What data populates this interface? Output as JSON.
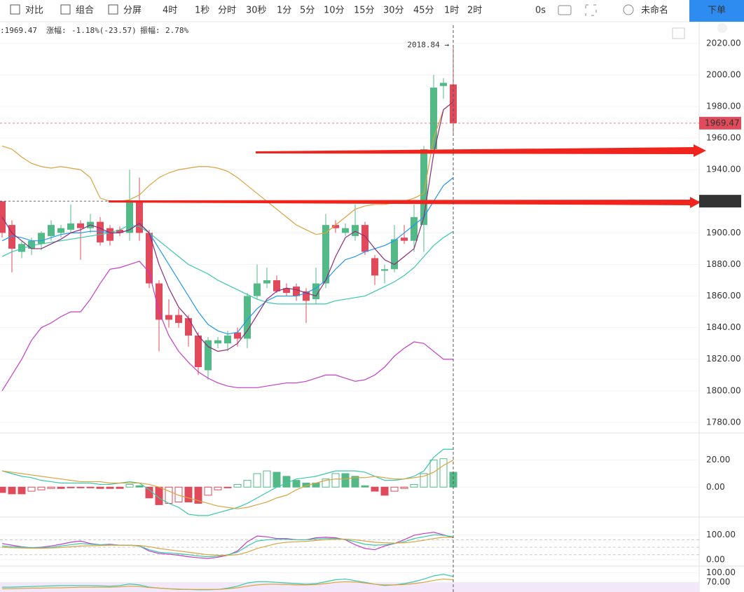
{
  "toolbar": {
    "tools": [
      "对比",
      "组合",
      "分屏"
    ],
    "intervals": [
      "4时",
      "1秒",
      "分时",
      "30秒",
      "1分",
      "5分",
      "10分",
      "15分",
      "30分",
      "45分",
      "1时",
      "2时"
    ],
    "timer": "0s",
    "layout_name": "未命名",
    "order_button": "下单"
  },
  "info": {
    "close_text": ":1969.47",
    "change_label": "涨幅:",
    "change_value": "-1.18%(-23.57)",
    "amplitude_label": "振幅:",
    "amplitude_value": "2.78%"
  },
  "chart_data": [
    {
      "type": "candlestick",
      "up_color": "#53b987",
      "down_color": "#e04a5a",
      "open": [
        1920,
        1905,
        1888,
        1890,
        1893,
        1898,
        1900,
        1902,
        1906,
        1903,
        1907,
        1903,
        1902,
        1900,
        1920,
        1900,
        1868,
        1848,
        1848,
        1846,
        1835,
        1813,
        1830,
        1830,
        1837,
        1833,
        1860,
        1868,
        1870,
        1865,
        1866,
        1863,
        1858,
        1868,
        1905,
        1900,
        1898,
        1905,
        1884,
        1876,
        1877,
        1897,
        1895,
        1905,
        1953,
        1993,
        1994
      ],
      "high": [
        1920,
        1908,
        1895,
        1897,
        1901,
        1908,
        1905,
        1918,
        1908,
        1912,
        1910,
        1905,
        1904,
        1940,
        1935,
        1902,
        1870,
        1858,
        1852,
        1848,
        1837,
        1834,
        1834,
        1838,
        1840,
        1862,
        1880,
        1878,
        1873,
        1868,
        1868,
        1865,
        1878,
        1912,
        1908,
        1906,
        1918,
        1907,
        1886,
        1880,
        1905,
        1905,
        1918,
        1955,
        2000,
        1998,
        2018.84
      ],
      "low": [
        1897,
        1875,
        1884,
        1886,
        1889,
        1895,
        1897,
        1900,
        1883,
        1900,
        1892,
        1892,
        1898,
        1895,
        1895,
        1865,
        1825,
        1840,
        1840,
        1828,
        1810,
        1807,
        1827,
        1825,
        1828,
        1827,
        1858,
        1865,
        1862,
        1860,
        1857,
        1843,
        1855,
        1865,
        1900,
        1898,
        1895,
        1886,
        1867,
        1868,
        1875,
        1893,
        1888,
        1888,
        1950,
        1985,
        1963
      ],
      "close": [
        1900,
        1890,
        1893,
        1895,
        1900,
        1905,
        1903,
        1906,
        1903,
        1907,
        1894,
        1895,
        1900,
        1920,
        1900,
        1868,
        1845,
        1845,
        1843,
        1835,
        1815,
        1832,
        1832,
        1835,
        1833,
        1860,
        1868,
        1870,
        1863,
        1862,
        1860,
        1857,
        1868,
        1905,
        1903,
        1903,
        1905,
        1888,
        1873,
        1877,
        1896,
        1895,
        1910,
        1953,
        1992,
        1995,
        1969.47
      ],
      "series": [
        {
          "color": "#d9a441",
          "values": [
            1955,
            1953,
            1948,
            1944,
            1942,
            1941,
            1942,
            1941,
            1940,
            1935,
            1922,
            1920,
            1920,
            1921,
            1924,
            1930,
            1935,
            1938,
            1940,
            1941,
            1942,
            1942,
            1941,
            1939,
            1935,
            1930,
            1925,
            1920,
            1915,
            1910,
            1905,
            1902,
            1899,
            1900,
            1905,
            1910,
            1915,
            1917,
            1918,
            1918,
            1919,
            1920,
            1922,
            1925,
            1960,
            1978,
            1983
          ]
        },
        {
          "color": "#c43dc4",
          "values": [
            1800,
            1810,
            1820,
            1832,
            1840,
            1843,
            1847,
            1850,
            1850,
            1858,
            1868,
            1877,
            1878,
            1880,
            1882,
            1875,
            1850,
            1835,
            1825,
            1818,
            1812,
            1808,
            1805,
            1803,
            1802,
            1802,
            1802,
            1803,
            1804,
            1805,
            1805,
            1806,
            1808,
            1810,
            1810,
            1808,
            1806,
            1807,
            1810,
            1815,
            1822,
            1827,
            1831,
            1830,
            1825,
            1820,
            1820
          ]
        },
        {
          "color": "#2196f3",
          "values": [
            1895,
            1898,
            1897,
            1895,
            1895,
            1897,
            1899,
            1900,
            1900,
            1901,
            1901,
            1900,
            1900,
            1902,
            1906,
            1900,
            1890,
            1880,
            1870,
            1860,
            1850,
            1842,
            1838,
            1836,
            1837,
            1845,
            1852,
            1857,
            1860,
            1860,
            1860,
            1862,
            1865,
            1870,
            1877,
            1883,
            1885,
            1888,
            1890,
            1892,
            1895,
            1900,
            1905,
            1910,
            1920,
            1930,
            1935
          ]
        },
        {
          "color": "#38c9a8",
          "values": [
            1885,
            1888,
            1890,
            1892,
            1893,
            1894,
            1895,
            1896,
            1897,
            1898,
            1899,
            1900,
            1902,
            1905,
            1904,
            1900,
            1895,
            1890,
            1885,
            1880,
            1877,
            1874,
            1870,
            1867,
            1864,
            1861,
            1858,
            1856,
            1855,
            1855,
            1855,
            1855,
            1855,
            1855,
            1857,
            1858,
            1859,
            1860,
            1863,
            1866,
            1869,
            1873,
            1878,
            1885,
            1892,
            1897,
            1901
          ]
        },
        {
          "color": "#8e2a7a",
          "values": [
            1910,
            1900,
            1895,
            1890,
            1890,
            1893,
            1896,
            1900,
            1902,
            1905,
            1903,
            1900,
            1900,
            1902,
            1906,
            1900,
            1880,
            1865,
            1853,
            1846,
            1835,
            1828,
            1825,
            1826,
            1830,
            1838,
            1848,
            1858,
            1863,
            1865,
            1864,
            1862,
            1860,
            1870,
            1885,
            1897,
            1901,
            1898,
            1890,
            1883,
            1880,
            1885,
            1890,
            1910,
            1950,
            1978,
            1983
          ]
        }
      ],
      "ylim": [
        1773.3,
        2031.5
      ],
      "yticks": [
        {
          "value": 2020,
          "label": "2020.00"
        },
        {
          "value": 2000,
          "label": "2000.00"
        },
        {
          "value": 1980,
          "label": "1980.00"
        },
        {
          "value": 1960,
          "label": "1960.00"
        },
        {
          "value": 1940,
          "label": "1940.00"
        },
        {
          "value": 1920,
          "label": "1920.00"
        },
        {
          "value": 1900,
          "label": "1900.00"
        },
        {
          "value": 1880,
          "label": "1880.00"
        },
        {
          "value": 1860,
          "label": "1860.00"
        },
        {
          "value": 1840,
          "label": "1840.00"
        },
        {
          "value": 1820,
          "label": "1820.00"
        },
        {
          "value": 1800,
          "label": "1800.00"
        },
        {
          "value": 1780,
          "label": "1780.00"
        }
      ],
      "price_lines": [
        {
          "value": 1969.47,
          "color": "#e04a5a"
        },
        {
          "value": 1920.09,
          "color": "#333333"
        }
      ],
      "max_label": "2018.84 →"
    },
    {
      "type": "histogram-bar",
      "up_color": "#53b987",
      "down_color": "#e04a5a",
      "values": [
        -4,
        -5,
        -5,
        -3,
        -2,
        -1,
        -1,
        -0.5,
        -0.5,
        -0.5,
        -1,
        -1,
        -1,
        2,
        1,
        -8,
        -13,
        -12,
        -11,
        -11,
        -12,
        -6,
        -2,
        -0.5,
        2,
        5,
        10,
        12,
        11,
        8,
        5,
        3,
        3,
        6,
        10,
        10,
        8,
        1,
        -3,
        -6,
        -3,
        -1,
        2,
        10,
        20,
        21,
        11
      ],
      "series": [
        {
          "color": "#38c9a8",
          "values": [
            12,
            10,
            8,
            7,
            5,
            4,
            3,
            3,
            3,
            3,
            2,
            2,
            3,
            4,
            3,
            -2,
            -8,
            -12,
            -15,
            -20,
            -21,
            -21,
            -19,
            -17,
            -15,
            -12,
            -8,
            -4,
            0,
            3,
            6,
            7,
            8,
            10,
            12,
            12,
            12,
            11,
            8,
            5,
            5,
            6,
            8,
            12,
            22,
            28,
            28
          ]
        },
        {
          "color": "#d9a441",
          "values": [
            12,
            11,
            10,
            9,
            8,
            7,
            6,
            5,
            4,
            4,
            4,
            3,
            3,
            3,
            3,
            2,
            0,
            -3,
            -6,
            -8,
            -10,
            -12,
            -14,
            -15,
            -16,
            -15,
            -13,
            -11,
            -8,
            -6,
            -2,
            1,
            3,
            5,
            6,
            6,
            7,
            7,
            8,
            7,
            6,
            6,
            7,
            8,
            11,
            16,
            20
          ]
        }
      ],
      "ylim": [
        -21.6,
        39
      ],
      "yticks": [
        {
          "value": 20,
          "label": "20.00"
        },
        {
          "value": 0,
          "label": "0.00"
        }
      ]
    },
    {
      "type": "line",
      "series": [
        {
          "color": "#c43dc4",
          "values": [
            65,
            58,
            52,
            48,
            50,
            55,
            62,
            70,
            75,
            65,
            60,
            62,
            58,
            58,
            55,
            35,
            25,
            22,
            18,
            12,
            8,
            5,
            10,
            18,
            35,
            72,
            95,
            92,
            85,
            85,
            80,
            80,
            88,
            90,
            88,
            80,
            60,
            45,
            40,
            55,
            65,
            80,
            98,
            105,
            110,
            100,
            88
          ]
        },
        {
          "color": "#38c9a8",
          "values": [
            55,
            52,
            50,
            48,
            48,
            50,
            55,
            60,
            65,
            62,
            60,
            60,
            58,
            58,
            55,
            40,
            30,
            27,
            24,
            20,
            15,
            12,
            14,
            20,
            30,
            55,
            75,
            80,
            82,
            82,
            80,
            80,
            83,
            85,
            85,
            82,
            72,
            62,
            58,
            60,
            65,
            72,
            85,
            92,
            100,
            98,
            92
          ]
        },
        {
          "color": "#d9a441",
          "values": [
            50,
            48,
            47,
            46,
            46,
            47,
            49,
            52,
            55,
            56,
            57,
            58,
            58,
            58,
            57,
            52,
            45,
            40,
            35,
            30,
            25,
            20,
            18,
            18,
            20,
            30,
            45,
            55,
            65,
            70,
            72,
            74,
            77,
            80,
            82,
            82,
            80,
            75,
            70,
            68,
            67,
            68,
            72,
            78,
            85,
            90,
            90
          ]
        }
      ],
      "levels": [
        80,
        50,
        20
      ],
      "ylim": [
        -20,
        165.7
      ],
      "yticks": [
        {
          "value": 100,
          "label": "100.00"
        },
        {
          "value": 0,
          "label": "0.00"
        }
      ]
    },
    {
      "type": "line",
      "band": [
        30,
        70
      ],
      "series": [
        {
          "color": "#38c9a8",
          "values": [
            55,
            55,
            56,
            57,
            58,
            59,
            60,
            60,
            60,
            60,
            59,
            58,
            60,
            65,
            62,
            55,
            52,
            50,
            48,
            48,
            47,
            47,
            48,
            52,
            58,
            68,
            72,
            72,
            70,
            68,
            66,
            64,
            66,
            72,
            78,
            80,
            75,
            70,
            64,
            60,
            62,
            66,
            72,
            80,
            90,
            95,
            88
          ]
        },
        {
          "color": "#d9a441",
          "values": [
            50,
            50,
            51,
            52,
            52,
            53,
            53,
            54,
            55,
            55,
            55,
            55,
            56,
            58,
            57,
            54,
            52,
            50,
            49,
            48,
            48,
            48,
            48,
            50,
            53,
            58,
            62,
            64,
            64,
            63,
            62,
            62,
            63,
            66,
            70,
            72,
            71,
            68,
            64,
            62,
            62,
            63,
            66,
            70,
            76,
            80,
            78
          ]
        }
      ],
      "ylim": [
        40,
        116
      ],
      "yticks": [
        {
          "value": 100,
          "label": "100.00"
        },
        {
          "value": 70,
          "label": "70.00"
        }
      ]
    }
  ]
}
